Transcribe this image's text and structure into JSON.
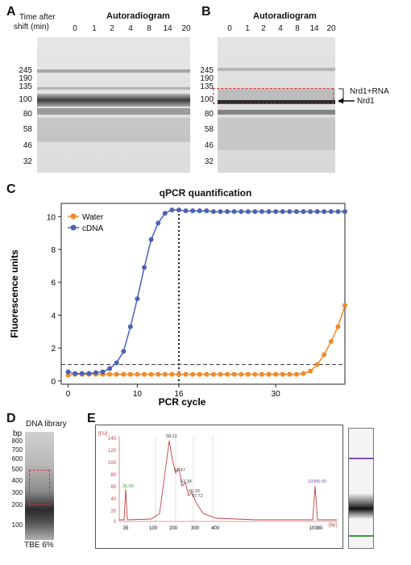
{
  "panelA": {
    "letter": "A",
    "title": "Autoradiogram",
    "time_label_1": "Time after",
    "time_label_2": "shift (min)",
    "lanes": [
      "0",
      "1",
      "2",
      "4",
      "8",
      "14",
      "20"
    ],
    "mw": [
      "245",
      "190",
      "135",
      "100",
      "80",
      "58",
      "46",
      "32"
    ]
  },
  "panelB": {
    "letter": "B",
    "title": "Autoradiogram",
    "lanes": [
      "0",
      "1",
      "2",
      "4",
      "8",
      "14",
      "20"
    ],
    "mw": [
      "245",
      "190",
      "135",
      "100",
      "80",
      "58",
      "46",
      "32"
    ],
    "label_complex": "Nrd1+RNA",
    "label_nrd1": "Nrd1"
  },
  "panelC": {
    "letter": "C",
    "chart_data": {
      "type": "line",
      "title": "qPCR quantification",
      "xlabel": "PCR cycle",
      "ylabel": "Fluorescence units",
      "xlim": [
        -1,
        40
      ],
      "ylim": [
        -0.2,
        10.8
      ],
      "xticks": [
        0,
        10,
        16,
        30
      ],
      "yticks": [
        0,
        2,
        4,
        6,
        8,
        10
      ],
      "threshold": 1.0,
      "marked_cycle": 16,
      "legend_position": "top-left",
      "x": [
        0,
        1,
        2,
        3,
        4,
        5,
        6,
        7,
        8,
        9,
        10,
        11,
        12,
        13,
        14,
        15,
        16,
        17,
        18,
        19,
        20,
        21,
        22,
        23,
        24,
        25,
        26,
        27,
        28,
        29,
        30,
        31,
        32,
        33,
        34,
        35,
        36,
        37,
        38,
        39,
        40
      ],
      "series": [
        {
          "name": "Water",
          "color": "#f0892b",
          "values": [
            0.35,
            0.4,
            0.4,
            0.4,
            0.4,
            0.4,
            0.4,
            0.4,
            0.4,
            0.4,
            0.4,
            0.4,
            0.4,
            0.4,
            0.4,
            0.4,
            0.4,
            0.4,
            0.4,
            0.4,
            0.4,
            0.4,
            0.4,
            0.4,
            0.4,
            0.4,
            0.4,
            0.4,
            0.4,
            0.4,
            0.4,
            0.4,
            0.4,
            0.4,
            0.45,
            0.6,
            1.0,
            1.6,
            2.4,
            3.3,
            4.6
          ]
        },
        {
          "name": "cDNA",
          "color": "#4a63b4",
          "values": [
            0.55,
            0.45,
            0.45,
            0.45,
            0.5,
            0.55,
            0.75,
            1.1,
            1.8,
            3.3,
            5.0,
            6.9,
            8.6,
            9.6,
            10.2,
            10.4,
            10.4,
            10.35,
            10.35,
            10.35,
            10.35,
            10.3,
            10.3,
            10.3,
            10.3,
            10.3,
            10.3,
            10.3,
            10.3,
            10.3,
            10.3,
            10.3,
            10.3,
            10.3,
            10.3,
            10.3,
            10.3,
            10.3,
            10.3,
            10.3,
            10.3
          ]
        }
      ]
    }
  },
  "panelD": {
    "letter": "D",
    "title": "DNA library",
    "unit": "bp",
    "mw": [
      "800",
      "700",
      "600",
      "500",
      "400",
      "300",
      "200",
      "100"
    ],
    "footer": "TBE 6%"
  },
  "panelE": {
    "letter": "E",
    "yunit": "[FU]",
    "xunit": "[bp]",
    "yticks": [
      "140",
      "120",
      "100",
      "80",
      "60",
      "40",
      "20",
      "0"
    ],
    "xticks": [
      "35",
      "100",
      "200",
      "300",
      "400",
      "10380"
    ],
    "peaks": [
      "35.00",
      "10380.00"
    ],
    "peak_labels": [
      "58.22",
      "61.47",
      "63.34",
      "66.33",
      "67.72"
    ],
    "marker_colors": {
      "lower": "#3a9a3a",
      "upper": "#7b4fb0",
      "trace": "#c04040"
    }
  }
}
